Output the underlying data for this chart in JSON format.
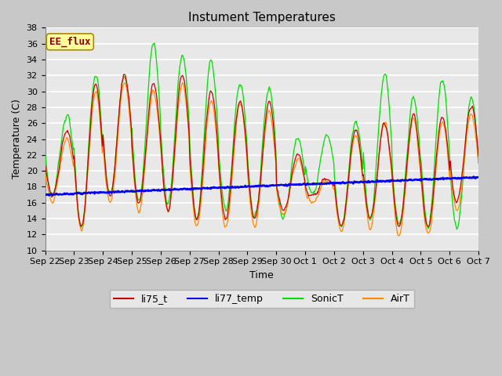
{
  "title": "Instument Temperatures",
  "xlabel": "Time",
  "ylabel": "Temperature (C)",
  "ylim": [
    10,
    38
  ],
  "yticks": [
    10,
    12,
    14,
    16,
    18,
    20,
    22,
    24,
    26,
    28,
    30,
    32,
    34,
    36,
    38
  ],
  "xtick_labels": [
    "Sep 22",
    "Sep 23",
    "Sep 24",
    "Sep 25",
    "Sep 26",
    "Sep 27",
    "Sep 28",
    "Sep 29",
    "Sep 30",
    "Oct 1",
    "Oct 2",
    "Oct 3",
    "Oct 4",
    "Oct 5",
    "Oct 6",
    "Oct 7"
  ],
  "colors": {
    "li75_t": "#cc0000",
    "li77_temp": "#0000ee",
    "SonicT": "#00dd00",
    "AirT": "#ff8800"
  },
  "annotation_text": "EE_flux",
  "annotation_color": "#880000",
  "annotation_bg": "#ffff99",
  "fig_bg": "#c8c8c8",
  "plot_bg": "#e8e8e8",
  "grid_color": "#ffffff",
  "title_fontsize": 11,
  "label_fontsize": 9,
  "tick_fontsize": 8
}
